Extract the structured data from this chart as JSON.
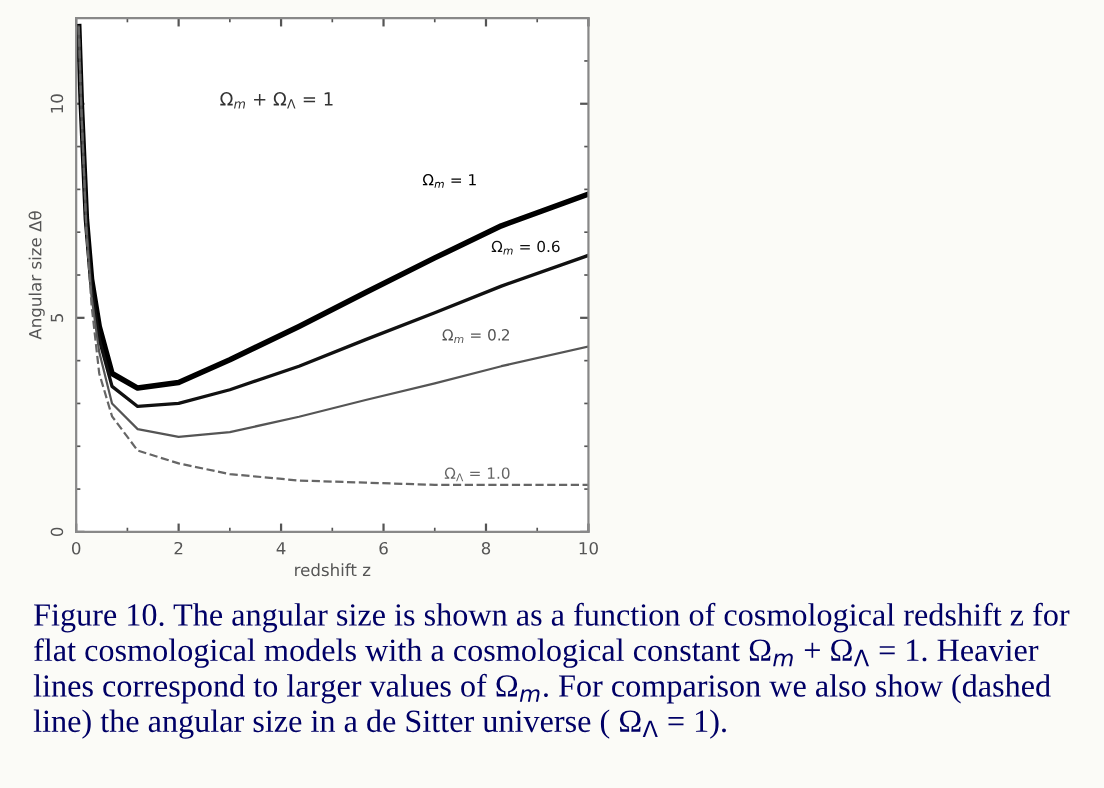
{
  "chart_data": {
    "type": "line",
    "xlabel": "redshift z",
    "ylabel": "Angular size Δθ",
    "x": [
      0.05,
      0.1,
      0.2,
      0.3,
      0.45,
      0.7,
      1.2,
      2,
      3,
      4.35,
      5.65,
      7,
      8.3,
      10
    ],
    "series": [
      {
        "name": "Ω$_{m}$ = 1",
        "color": "#000000",
        "values": [
          11.8,
          10,
          7.3,
          5.9,
          4.8,
          3.7,
          3.36,
          3.49,
          4.02,
          4.8,
          5.59,
          6.4,
          7.15,
          7.89
        ]
      },
      {
        "name": "Ω$_{m}$ = 0.6",
        "color": "#111111",
        "values": [
          11.8,
          10,
          7.2,
          5.7,
          4.5,
          3.4,
          2.93,
          3.0,
          3.32,
          3.87,
          4.49,
          5.12,
          5.74,
          6.46
        ]
      },
      {
        "name": "Ω$_{m}$ = 0.2",
        "color": "#555555",
        "values": [
          11.8,
          9.9,
          7.1,
          5.5,
          4.2,
          3.0,
          2.4,
          2.22,
          2.33,
          2.69,
          3.08,
          3.47,
          3.87,
          4.33
        ]
      },
      {
        "name": "Ω$_{Λ}$ = 1.0",
        "color": "#666666",
        "line_style": "dashed",
        "values": [
          11.8,
          9.9,
          7.0,
          5.3,
          3.7,
          2.7,
          1.9,
          1.6,
          1.35,
          1.2,
          1.15,
          1.1,
          1.1,
          1.1
        ]
      }
    ],
    "xlim": [
      0,
      10
    ],
    "ylim": [
      0,
      12
    ],
    "xticks": [
      0,
      2,
      4,
      6,
      8,
      10
    ],
    "yticks": [
      0,
      5,
      10
    ],
    "grid": false,
    "legend": false,
    "marker": "none",
    "line_style": "solid",
    "annotations": [
      "Ω$_{m}$ + Ω$_{Λ}$ = 1",
      "Figure 10. The angular size is shown as a function of cosmological redshift z for flat cosmological models with a cosmological constant Ω$_{m}$ + Ω$_{Λ}$ = 1. Heavier lines correspond to larger values of Ω$_{m}$. For comparison we also show (dashed line) the angular size in a de Sitter universe ( Ω$_{Λ}$ = 1)."
    ]
  }
}
